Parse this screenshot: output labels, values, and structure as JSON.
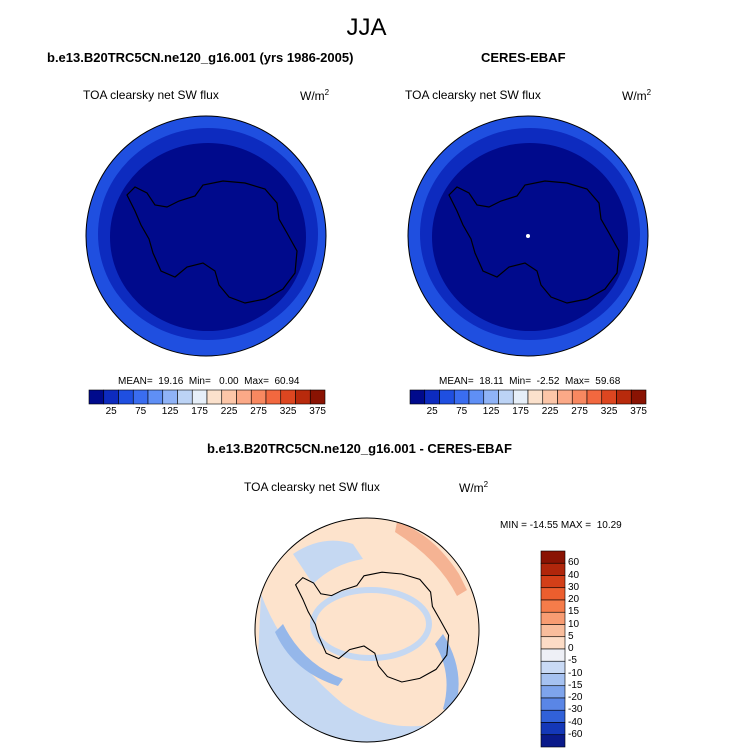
{
  "title": "JJA",
  "colors": {
    "panel_low": "#000a8c",
    "panel_ring": "#0d2bbf",
    "panel_outer": "#1f4fe0",
    "diff_bg": "#fde3cc",
    "diff_blue": "#c5d8f2",
    "diff_midblue": "#95b7ea",
    "diff_orange": "#f5b393"
  },
  "panels": [
    {
      "title": "b.e13.B20TRC5CN.ne120_g16.001 (yrs 1986-2005)",
      "variable": "TOA clearsky net SW flux",
      "units_base": "W/m",
      "units_exp": "2",
      "stats": "MEAN=  19.16  Min=   0.00  Max=  60.94"
    },
    {
      "title": "CERES-EBAF",
      "variable": "TOA clearsky net SW flux",
      "units_base": "W/m",
      "units_exp": "2",
      "stats": "MEAN=  18.11  Min=  -2.52  Max=  59.68"
    }
  ],
  "diff_panel": {
    "title": "b.e13.B20TRC5CN.ne120_g16.001 - CERES-EBAF",
    "variable": "TOA clearsky net SW flux",
    "units_base": "W/m",
    "units_exp": "2",
    "stats": "MIN = -14.55 MAX =  10.29"
  },
  "chart_data": [
    {
      "type": "heatmap",
      "title": "b.e13.B20TRC5CN.ne120_g16.001 (yrs 1986-2005)",
      "projection": "south-polar stereographic",
      "mean": 19.16,
      "min": 0.0,
      "max": 60.94,
      "colorbar": {
        "labels": [
          "25",
          "75",
          "125",
          "175",
          "225",
          "275",
          "325",
          "375"
        ],
        "colors": [
          "#000a8c",
          "#0d2bbf",
          "#1f4fe0",
          "#3a6df0",
          "#5f8ff5",
          "#8fb3f7",
          "#bcd3f5",
          "#e6eff9",
          "#fbe1cc",
          "#fcc6a8",
          "#fba987",
          "#f88860",
          "#f2683f",
          "#dd4620",
          "#b82a0c",
          "#8a1303"
        ]
      }
    },
    {
      "type": "heatmap",
      "title": "CERES-EBAF",
      "projection": "south-polar stereographic",
      "mean": 18.11,
      "min": -2.52,
      "max": 59.68,
      "colorbar": {
        "labels": [
          "25",
          "75",
          "125",
          "175",
          "225",
          "275",
          "325",
          "375"
        ],
        "colors": [
          "#000a8c",
          "#0d2bbf",
          "#1f4fe0",
          "#3a6df0",
          "#5f8ff5",
          "#8fb3f7",
          "#bcd3f5",
          "#e6eff9",
          "#fbe1cc",
          "#fcc6a8",
          "#fba987",
          "#f88860",
          "#f2683f",
          "#dd4620",
          "#b82a0c",
          "#8a1303"
        ]
      }
    },
    {
      "type": "heatmap",
      "title": "b.e13.B20TRC5CN.ne120_g16.001 - CERES-EBAF",
      "projection": "south-polar stereographic",
      "min": -14.55,
      "max": 10.29,
      "colorbar": {
        "labels": [
          "60",
          "40",
          "30",
          "20",
          "15",
          "10",
          "5",
          "0",
          "-5",
          "-10",
          "-15",
          "-20",
          "-30",
          "-40",
          "-60"
        ],
        "colors": [
          "#8a1303",
          "#b0260b",
          "#d33f18",
          "#ec5e2e",
          "#f57c4a",
          "#f89c72",
          "#f9bd9c",
          "#fcdcc6",
          "#eef0f6",
          "#c9daf5",
          "#a6c2f1",
          "#7ea4ec",
          "#5a86e6",
          "#3161d8",
          "#1438b8",
          "#0a1a8a"
        ]
      }
    }
  ]
}
